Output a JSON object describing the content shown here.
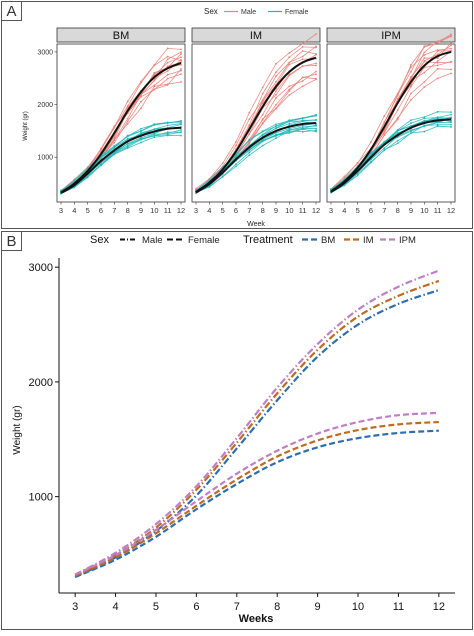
{
  "colors": {
    "male": "#E8837A",
    "female": "#22B8B8",
    "mean": "#111111",
    "BM": "#2E6EAE",
    "IM": "#C06A1E",
    "IPM": "#C07EC6",
    "strip_bg": "#D9D9D9",
    "panel_border": "#333333"
  },
  "chart_data": [
    {
      "type": "line",
      "panel_label": "A",
      "legend": {
        "title": "Sex",
        "entries": [
          "Male",
          "Female"
        ],
        "placement": "top"
      },
      "facets": [
        "BM",
        "IM",
        "IPM"
      ],
      "xlabel": "Week",
      "ylabel": "Weight (gr)",
      "x_ticks": [
        3,
        4,
        5,
        6,
        7,
        8,
        9,
        10,
        11,
        12
      ],
      "y_ticks": [
        1000,
        2000,
        3000
      ],
      "ylim": [
        150,
        3150
      ],
      "grid": false,
      "x": [
        3,
        4,
        5,
        6,
        7,
        8,
        9,
        10,
        11,
        12
      ],
      "mean_curves": {
        "BM": {
          "Male": [
            330,
            500,
            740,
            1060,
            1460,
            1880,
            2240,
            2520,
            2690,
            2790
          ],
          "Female": [
            320,
            470,
            690,
            930,
            1130,
            1300,
            1410,
            1490,
            1540,
            1560
          ]
        },
        "IM": {
          "Male": [
            340,
            520,
            770,
            1110,
            1530,
            1960,
            2340,
            2620,
            2800,
            2890
          ],
          "Female": [
            330,
            490,
            710,
            960,
            1190,
            1370,
            1500,
            1580,
            1630,
            1650
          ]
        },
        "IPM": {
          "Male": [
            350,
            540,
            800,
            1150,
            1580,
            2030,
            2430,
            2740,
            2920,
            3000
          ],
          "Female": [
            340,
            510,
            740,
            1000,
            1240,
            1420,
            1560,
            1650,
            1700,
            1720
          ]
        }
      },
      "individual_curves_per_sex": 12,
      "individual_spread": {
        "Male": 0.14,
        "Female": 0.08
      }
    },
    {
      "type": "line",
      "panel_label": "B",
      "legend": {
        "sex_title": "Sex",
        "sex_entries": [
          "Male",
          "Female"
        ],
        "treatment_title": "Treatment",
        "treatment_entries": [
          "BM",
          "IM",
          "IPM"
        ],
        "placement": "top"
      },
      "xlabel": "Weeks",
      "ylabel": "Weight (gr)",
      "x_ticks": [
        3,
        4,
        5,
        6,
        7,
        8,
        9,
        10,
        11,
        12
      ],
      "y_ticks": [
        1000,
        2000,
        3000
      ],
      "xlim": [
        2.6,
        12.4
      ],
      "ylim": [
        160,
        3080
      ],
      "grid": false,
      "x": [
        3,
        4,
        5,
        6,
        7,
        8,
        9,
        10,
        11,
        12
      ],
      "series": [
        {
          "treatment": "BM",
          "sex": "Male",
          "values": [
            300,
            470,
            700,
            1010,
            1420,
            1840,
            2220,
            2500,
            2680,
            2800
          ]
        },
        {
          "treatment": "IM",
          "sex": "Male",
          "values": [
            310,
            490,
            730,
            1060,
            1470,
            1900,
            2280,
            2570,
            2750,
            2880
          ]
        },
        {
          "treatment": "IPM",
          "sex": "Male",
          "values": [
            320,
            510,
            760,
            1090,
            1510,
            1950,
            2330,
            2630,
            2830,
            2970
          ]
        },
        {
          "treatment": "BM",
          "sex": "Female",
          "values": [
            300,
            450,
            650,
            890,
            1110,
            1300,
            1430,
            1510,
            1555,
            1575
          ]
        },
        {
          "treatment": "IM",
          "sex": "Female",
          "values": [
            310,
            470,
            680,
            920,
            1150,
            1350,
            1490,
            1580,
            1630,
            1650
          ]
        },
        {
          "treatment": "IPM",
          "sex": "Female",
          "values": [
            320,
            490,
            710,
            960,
            1200,
            1400,
            1550,
            1650,
            1710,
            1730
          ]
        }
      ]
    }
  ]
}
